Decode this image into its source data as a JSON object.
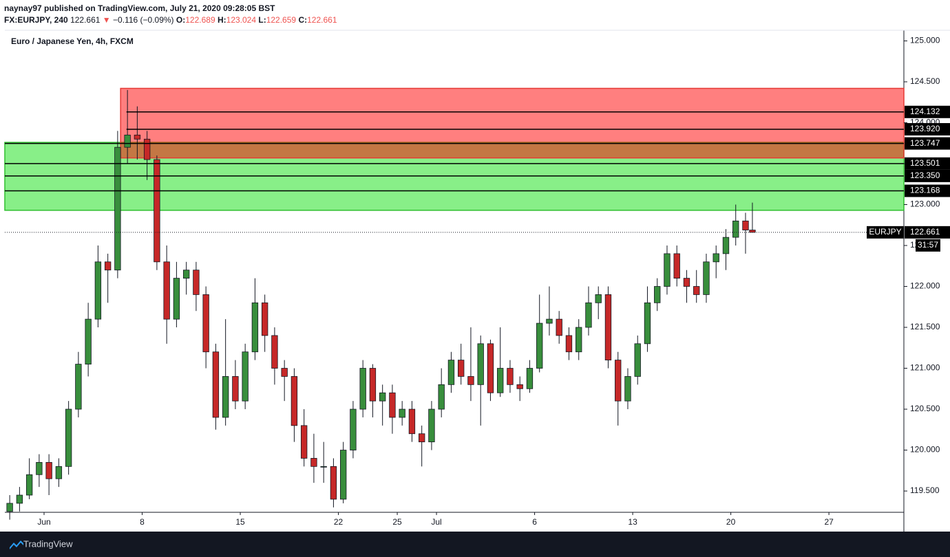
{
  "header": {
    "publisher_line": "naynay97 published on TradingView.com, July 21, 2020 09:28:05 BST",
    "symbol": "FX:EURJPY, 240",
    "last": "122.661",
    "arrow": "▼",
    "change": "−0.116 (−0.09%)",
    "o_label": "O:",
    "o": "122.689",
    "h_label": "H:",
    "h": "123.024",
    "l_label": "L:",
    "l": "122.659",
    "c_label": "C:",
    "c": "122.661"
  },
  "chart_data": {
    "type": "candlestick",
    "title": "Euro / Japanese Yen, 4h, FXCM",
    "up_color": "#388e3c",
    "down_color": "#c62828",
    "x": [
      0.25,
      0.75,
      1.25,
      1.75,
      2.25,
      2.75,
      3.25,
      3.75,
      4.25,
      4.75,
      5.25,
      5.75,
      6.25,
      6.75,
      7.25,
      7.75,
      8.25,
      8.75,
      9.25,
      9.75,
      10.25,
      10.75,
      11.25,
      11.75,
      12.25,
      12.75,
      13.25,
      13.75,
      14.25,
      14.75,
      15.25,
      15.75,
      16.25,
      16.75,
      17.25,
      17.75,
      18.25,
      18.75,
      19.25,
      19.75,
      20.25,
      20.75,
      21.25,
      21.75,
      22.25,
      22.75,
      23.25,
      23.75,
      24.25,
      24.75,
      25.25,
      25.75,
      26.25,
      26.75,
      27.25,
      27.75,
      28.25,
      28.75,
      29.25,
      29.75,
      30.25,
      30.75,
      31.25,
      31.75,
      32.25,
      32.75,
      33.25,
      33.75,
      34.25,
      34.75,
      35.25,
      35.75,
      36.25,
      36.75,
      37.25,
      37.75,
      38.1
    ],
    "open": [
      119.25,
      119.35,
      119.45,
      119.7,
      119.85,
      119.65,
      119.8,
      120.5,
      121.05,
      121.6,
      122.3,
      122.2,
      123.7,
      123.85,
      123.8,
      123.55,
      122.3,
      121.6,
      122.1,
      122.2,
      121.9,
      121.2,
      120.4,
      120.9,
      120.6,
      121.2,
      121.8,
      121.4,
      121.0,
      120.9,
      120.3,
      119.9,
      119.8,
      119.8,
      119.4,
      120.0,
      120.5,
      121.0,
      120.6,
      120.7,
      120.4,
      120.5,
      120.2,
      120.1,
      120.5,
      120.8,
      121.1,
      120.9,
      120.8,
      121.3,
      120.7,
      121.0,
      120.8,
      120.75,
      121.0,
      121.55,
      121.6,
      121.4,
      121.2,
      121.5,
      121.8,
      121.9,
      121.1,
      120.6,
      120.9,
      121.3,
      121.8,
      122.0,
      122.4,
      122.1,
      122.0,
      121.9,
      122.3,
      122.4,
      122.6,
      122.8,
      122.689
    ],
    "high": [
      119.45,
      119.55,
      119.9,
      119.95,
      119.95,
      119.9,
      120.6,
      121.2,
      121.8,
      122.5,
      122.4,
      123.9,
      124.4,
      124.2,
      123.9,
      123.6,
      122.5,
      122.3,
      122.3,
      122.3,
      122.0,
      121.3,
      121.6,
      121.1,
      121.3,
      122.1,
      121.9,
      121.5,
      121.1,
      121.0,
      120.5,
      120.2,
      120.1,
      119.9,
      120.1,
      120.6,
      121.1,
      121.05,
      120.8,
      120.8,
      120.6,
      120.6,
      120.3,
      120.6,
      121.0,
      121.2,
      121.3,
      121.5,
      121.4,
      121.35,
      121.5,
      121.1,
      120.9,
      121.1,
      121.9,
      122.0,
      121.7,
      121.5,
      121.6,
      122.0,
      122.0,
      122.0,
      121.2,
      121.0,
      121.4,
      122.0,
      122.1,
      122.5,
      122.5,
      122.2,
      122.2,
      122.4,
      122.5,
      122.7,
      123.0,
      122.9,
      123.024
    ],
    "low": [
      119.15,
      119.25,
      119.4,
      119.55,
      119.45,
      119.55,
      119.7,
      120.4,
      120.9,
      121.5,
      121.8,
      122.1,
      123.5,
      123.55,
      123.3,
      122.2,
      121.3,
      121.5,
      121.9,
      121.7,
      121.0,
      120.25,
      120.3,
      120.5,
      120.5,
      121.1,
      121.2,
      120.8,
      120.6,
      120.1,
      119.8,
      119.6,
      119.6,
      119.3,
      119.35,
      119.9,
      120.4,
      120.4,
      120.3,
      120.2,
      120.3,
      120.1,
      119.8,
      120.0,
      120.4,
      120.7,
      120.8,
      120.6,
      120.3,
      120.6,
      120.65,
      120.7,
      120.6,
      120.7,
      120.95,
      121.4,
      121.3,
      121.1,
      121.1,
      121.4,
      121.6,
      121.0,
      120.3,
      120.5,
      120.8,
      121.2,
      121.7,
      121.9,
      122.0,
      121.8,
      121.8,
      121.8,
      122.1,
      122.2,
      122.5,
      122.4,
      122.659
    ],
    "close": [
      119.35,
      119.45,
      119.7,
      119.85,
      119.65,
      119.8,
      120.5,
      121.05,
      121.6,
      122.3,
      122.2,
      123.7,
      123.85,
      123.8,
      123.55,
      122.3,
      121.6,
      122.1,
      122.2,
      121.9,
      121.2,
      120.4,
      120.9,
      120.6,
      121.2,
      121.8,
      121.4,
      121.0,
      120.9,
      120.3,
      119.9,
      119.8,
      119.8,
      119.4,
      120.0,
      120.5,
      121.0,
      120.6,
      120.7,
      120.4,
      120.5,
      120.2,
      120.1,
      120.5,
      120.8,
      121.1,
      120.9,
      120.8,
      121.3,
      120.7,
      121.0,
      120.8,
      120.75,
      121.0,
      121.55,
      121.6,
      121.4,
      121.2,
      121.5,
      121.8,
      121.9,
      121.1,
      120.6,
      120.9,
      121.3,
      121.8,
      122.0,
      122.4,
      122.1,
      122.0,
      121.9,
      122.3,
      122.4,
      122.6,
      122.8,
      122.689,
      122.661
    ],
    "xlim": [
      0,
      45.82
    ],
    "ylim": [
      119.24,
      125.13
    ],
    "xticks": [
      {
        "value": 2,
        "label": "Jun"
      },
      {
        "value": 7,
        "label": "8"
      },
      {
        "value": 12,
        "label": "15"
      },
      {
        "value": 17,
        "label": "22"
      },
      {
        "value": 20,
        "label": "25"
      },
      {
        "value": 22,
        "label": "Jul"
      },
      {
        "value": 27,
        "label": "6"
      },
      {
        "value": 32,
        "label": "13"
      },
      {
        "value": 37,
        "label": "20"
      },
      {
        "value": 42,
        "label": "27"
      }
    ],
    "yticks": [
      {
        "value": 125,
        "label": "125.000"
      },
      {
        "value": 124.5,
        "label": "124.500"
      },
      {
        "value": 124,
        "label": "124.000"
      },
      {
        "value": 123.5,
        "label": "123.500"
      },
      {
        "value": 123,
        "label": "123.000"
      },
      {
        "value": 122.5,
        "label": "122.500"
      },
      {
        "value": 122,
        "label": "122.000"
      },
      {
        "value": 121.5,
        "label": "121.500"
      },
      {
        "value": 121,
        "label": "121.000"
      },
      {
        "value": 120.5,
        "label": "120.500"
      },
      {
        "value": 120,
        "label": "120.000"
      },
      {
        "value": 119.5,
        "label": "119.500"
      }
    ],
    "zones": [
      {
        "color": "#88ef88",
        "border": "#2fbf2f",
        "ylim": [
          122.93,
          123.76
        ],
        "x_start": 0
      },
      {
        "color": "rgba(255,0,0,0.5)",
        "border": "#e53935",
        "ylim": [
          123.57,
          124.42
        ],
        "x_start": 5.9
      }
    ],
    "levels": [
      {
        "value": 124.132,
        "label": "124.132",
        "x_start": 6.2
      },
      {
        "value": 123.92,
        "label": "123.920",
        "x_start": 6.2
      },
      {
        "value": 123.747,
        "label": "123.747",
        "x_start": 0
      },
      {
        "value": 123.501,
        "label": "123.501",
        "x_start": 0
      },
      {
        "value": 123.35,
        "label": "123.350",
        "x_start": 0
      },
      {
        "value": 123.168,
        "label": "123.168",
        "x_start": 0
      }
    ],
    "last_price": {
      "value": 122.661,
      "label": "122.661"
    },
    "symbol": "EURJPY",
    "countdown": "31:57"
  },
  "footer": {
    "brand": "TradingView"
  }
}
